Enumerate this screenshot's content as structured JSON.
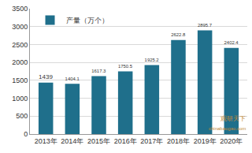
{
  "chart_data": {
    "type": "bar",
    "categories": [
      "2013年",
      "2014年",
      "2015年",
      "2016年",
      "2017年",
      "2018年",
      "2019年",
      "2020年"
    ],
    "series": [
      {
        "name": "产量（万个）",
        "color": "#1f6f8b",
        "values": [
          1439,
          1404.1,
          1617.3,
          1750.5,
          1925.2,
          2622.8,
          2895.7,
          2402.4
        ]
      }
    ],
    "ylim": [
      0,
      3500
    ],
    "yticks": [
      0,
      500,
      1000,
      1500,
      2000,
      2500,
      3000,
      3500
    ],
    "grid": true,
    "legend": "top-left",
    "data_labels": true,
    "annotations": [
      "观研天下",
      "chinabaogao.com"
    ]
  }
}
